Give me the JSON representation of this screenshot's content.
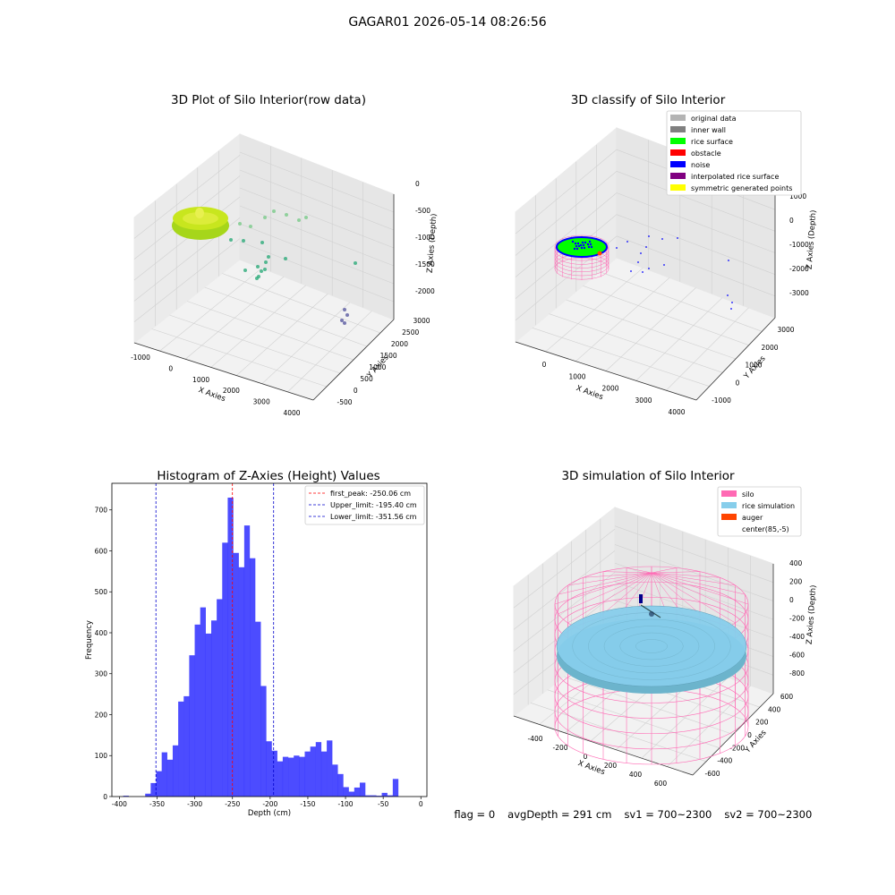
{
  "suptitle": "GAGAR01 2026-05-14 08:26:56",
  "footer": {
    "flag": "flag = 0",
    "avg": "avgDepth = 291 cm",
    "sv1": "sv1 = 700~2300",
    "sv2": "sv2 = 700~2300"
  },
  "chart_data": [
    {
      "type": "scatter",
      "title": "3D Plot of Silo Interior(row data)",
      "xlabel": "X Axies",
      "ylabel": "Y Axies",
      "zlabel": "Z Axies (Depth)",
      "xticks": [
        "-1000",
        "0",
        "1000",
        "2000",
        "3000",
        "4000"
      ],
      "yticks": [
        "-500",
        "0",
        "500",
        "1000",
        "1500",
        "2000",
        "2500",
        "3000"
      ],
      "zticks": [
        "0",
        "-500",
        "-1000",
        "-1500",
        "-2000"
      ],
      "colors": {
        "surface": "#c8e61e",
        "mid": "#2eab7a",
        "far": "#5a5aa0"
      }
    },
    {
      "type": "scatter",
      "title": "3D classify of Silo Interior",
      "xticks": [
        "0",
        "1000",
        "2000",
        "3000",
        "4000"
      ],
      "yticks": [
        "-1000",
        "0",
        "1000",
        "2000",
        "3000"
      ],
      "zticks": [
        "1000",
        "0",
        "-1000",
        "-2000",
        "-3000"
      ],
      "xlabel": "X Axies",
      "ylabel": "Y Axies",
      "zlabel": "Z Axies (Depth)",
      "legend": [
        {
          "label": "original data",
          "color": "#b4b4b4"
        },
        {
          "label": "inner wall",
          "color": "#808080"
        },
        {
          "label": "rice surface",
          "color": "#00ff00"
        },
        {
          "label": "obstacle",
          "color": "#ff0000"
        },
        {
          "label": "noise",
          "color": "#0000ff"
        },
        {
          "label": "interpolated rice surface",
          "color": "#800080"
        },
        {
          "label": "symmetric generated points",
          "color": "#ffff00"
        }
      ]
    },
    {
      "type": "bar",
      "title": "Histogram of Z-Axies (Height) Values",
      "xlabel": "Depth (cm)",
      "ylabel": "Frequency",
      "xlim": [
        -410,
        8
      ],
      "ylim": [
        0,
        765
      ],
      "xticks": [
        -400,
        -350,
        -300,
        -250,
        -200,
        -150,
        -100,
        -50,
        0
      ],
      "yticks": [
        0,
        100,
        200,
        300,
        400,
        500,
        600,
        700
      ],
      "bin_width": 7.3,
      "bin_start": -395,
      "values": [
        2,
        0,
        0,
        0,
        7,
        33,
        62,
        108,
        90,
        125,
        232,
        245,
        345,
        420,
        462,
        398,
        430,
        482,
        620,
        730,
        595,
        560,
        662,
        582,
        427,
        270,
        135,
        112,
        86,
        97,
        95,
        100,
        97,
        110,
        122,
        133,
        110,
        137,
        78,
        55,
        23,
        12,
        22,
        34,
        3,
        3,
        2,
        9,
        3,
        43
      ],
      "bar_color": "#0000ff",
      "bar_opacity": 0.7,
      "lines": [
        {
          "label": "first_peak: -250.06 cm",
          "x": -250.06,
          "color": "#ff0000"
        },
        {
          "label": "Upper_limit: -195.40 cm",
          "x": -195.4,
          "color": "#0000cc"
        },
        {
          "label": "Lower_limit: -351.56 cm",
          "x": -351.56,
          "color": "#0000cc"
        }
      ]
    },
    {
      "type": "scatter",
      "title": "3D simulation of Silo Interior",
      "xlabel": "X Axies",
      "ylabel": "Y Axies",
      "zlabel": "Z Axies (Depth)",
      "xticks": [
        "-400",
        "-200",
        "0",
        "200",
        "400",
        "600"
      ],
      "yticks": [
        "-600",
        "-400",
        "-200",
        "0",
        "200",
        "400",
        "600"
      ],
      "zticks": [
        "400",
        "200",
        "0",
        "-200",
        "-400",
        "-600",
        "-800"
      ],
      "legend": [
        {
          "label": "silo",
          "color": "#ff69b4"
        },
        {
          "label": "rice simulation",
          "color": "#87ceeb"
        },
        {
          "label": "auger",
          "color": "#ff4500"
        },
        {
          "label": "center(85,-5)",
          "color": "none"
        }
      ]
    }
  ]
}
